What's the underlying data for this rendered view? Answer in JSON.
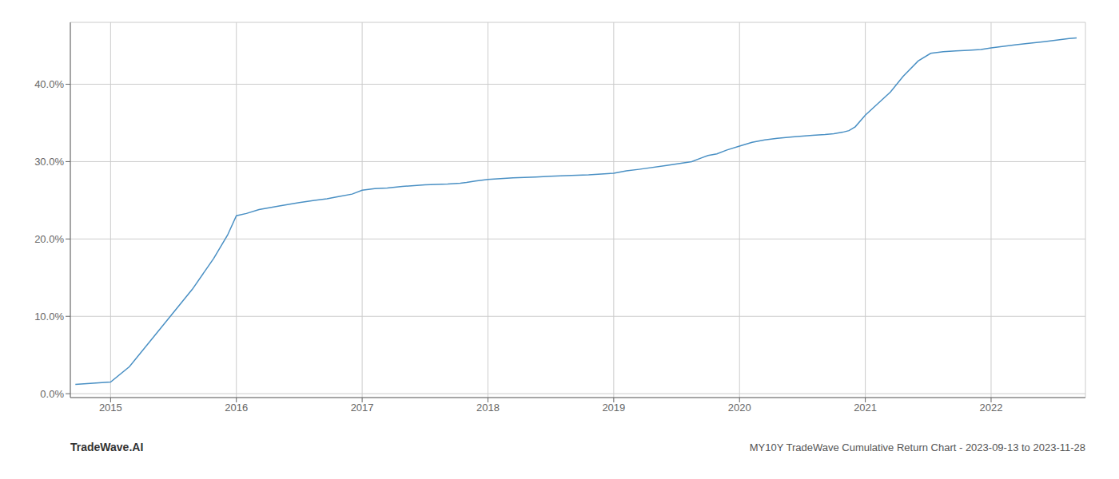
{
  "chart_data": {
    "type": "line",
    "title": "MY10Y TradeWave Cumulative Return Chart - 2023-09-13 to 2023-11-28",
    "annotations": [
      "TradeWave.AI"
    ],
    "x": [
      2014.72,
      2015.0,
      2015.15,
      2015.4,
      2015.65,
      2015.82,
      2015.93,
      2016.0,
      2016.08,
      2016.18,
      2016.35,
      2016.5,
      2016.62,
      2016.72,
      2016.82,
      2016.92,
      2017.0,
      2017.1,
      2017.2,
      2017.32,
      2017.5,
      2017.68,
      2017.78,
      2017.83,
      2017.9,
      2018.0,
      2018.1,
      2018.2,
      2018.38,
      2018.5,
      2018.62,
      2018.8,
      2019.0,
      2019.1,
      2019.2,
      2019.42,
      2019.62,
      2019.7,
      2019.75,
      2019.82,
      2019.9,
      2020.0,
      2020.1,
      2020.2,
      2020.3,
      2020.42,
      2020.5,
      2020.58,
      2020.68,
      2020.75,
      2020.82,
      2020.87,
      2020.92,
      2021.0,
      2021.1,
      2021.2,
      2021.3,
      2021.42,
      2021.52,
      2021.57,
      2021.62,
      2021.72,
      2021.82,
      2021.92,
      2022.0,
      2022.1,
      2022.2,
      2022.3,
      2022.42,
      2022.52,
      2022.62,
      2022.68
    ],
    "values": [
      0.012,
      0.015,
      0.035,
      0.085,
      0.135,
      0.175,
      0.205,
      0.23,
      0.233,
      0.238,
      0.243,
      0.247,
      0.25,
      0.252,
      0.255,
      0.258,
      0.263,
      0.265,
      0.266,
      0.268,
      0.27,
      0.271,
      0.272,
      0.273,
      0.275,
      0.277,
      0.278,
      0.279,
      0.28,
      0.281,
      0.282,
      0.283,
      0.285,
      0.288,
      0.29,
      0.295,
      0.3,
      0.305,
      0.308,
      0.31,
      0.315,
      0.32,
      0.325,
      0.328,
      0.33,
      0.332,
      0.333,
      0.334,
      0.335,
      0.336,
      0.338,
      0.34,
      0.345,
      0.36,
      0.375,
      0.39,
      0.41,
      0.43,
      0.44,
      0.441,
      0.442,
      0.443,
      0.444,
      0.445,
      0.447,
      0.449,
      0.451,
      0.453,
      0.455,
      0.457,
      0.459,
      0.46
    ],
    "color": "#4a90c4",
    "xlim": [
      2014.68,
      2022.75
    ],
    "ylim": [
      -0.005,
      0.48
    ],
    "xticks": [
      2015,
      2016,
      2017,
      2018,
      2019,
      2020,
      2021,
      2022
    ],
    "yticks": [
      {
        "value": 0.0,
        "label": "0.0%"
      },
      {
        "value": 0.1,
        "label": "10.0%"
      },
      {
        "value": 0.2,
        "label": "20.0%"
      },
      {
        "value": 0.3,
        "label": "30.0%"
      },
      {
        "value": 0.4,
        "label": "40.0%"
      }
    ],
    "grid": true
  }
}
